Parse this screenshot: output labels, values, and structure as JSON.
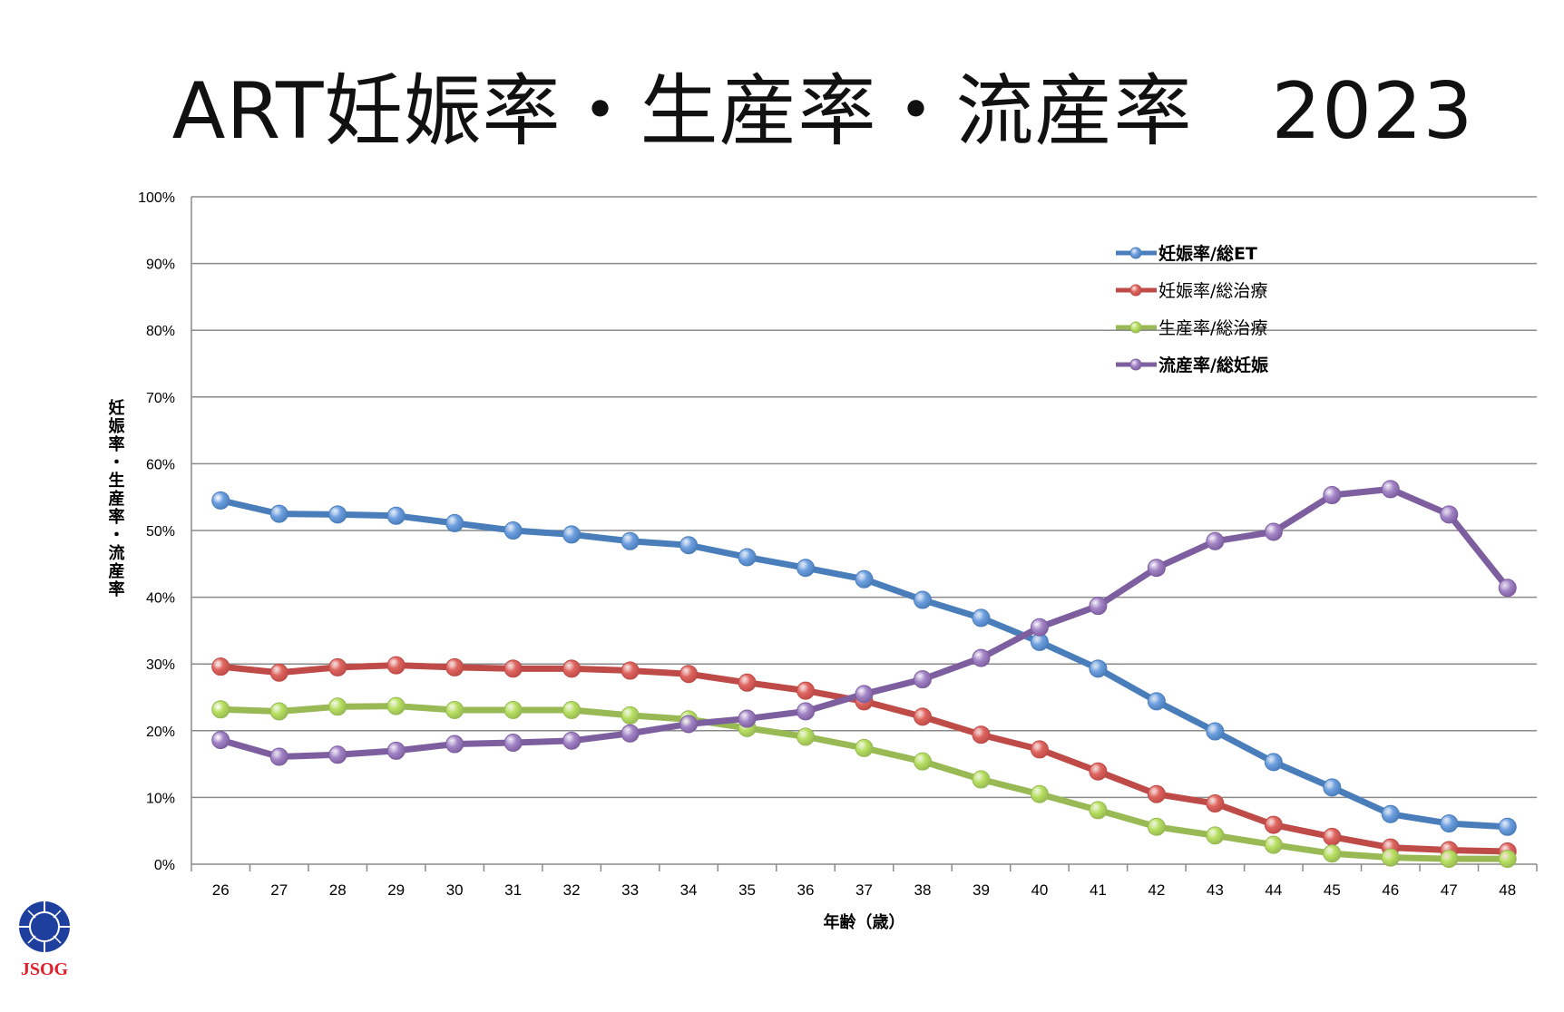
{
  "chart_data": {
    "type": "line",
    "title": "ART妊娠率・生産率・流産率　2023",
    "xlabel": "年齢（歳）",
    "ylabel": "妊娠率・生産率・流産率",
    "ylim": [
      0,
      100
    ],
    "yticks": [
      "0%",
      "10%",
      "20%",
      "30%",
      "40%",
      "50%",
      "60%",
      "70%",
      "80%",
      "90%",
      "100%"
    ],
    "grid": true,
    "legend_position": "top-right",
    "categories": [
      "26",
      "27",
      "28",
      "29",
      "30",
      "31",
      "32",
      "33",
      "34",
      "35",
      "36",
      "37",
      "38",
      "39",
      "40",
      "41",
      "42",
      "43",
      "44",
      "45",
      "46",
      "47",
      "48"
    ],
    "series": [
      {
        "name": "妊娠率/総ET",
        "color": "#4a7ebb",
        "marker": "#6fa0e0",
        "values": [
          54.5,
          52.5,
          52.4,
          52.2,
          51.1,
          50.0,
          49.4,
          48.4,
          47.8,
          46.0,
          44.4,
          42.7,
          39.6,
          36.9,
          33.3,
          29.3,
          24.4,
          19.9,
          15.3,
          11.5,
          7.5,
          6.1,
          5.6
        ]
      },
      {
        "name": "妊娠率/総治療",
        "color": "#be4b48",
        "marker": "#e06660",
        "values": [
          29.6,
          28.7,
          29.5,
          29.8,
          29.5,
          29.3,
          29.3,
          29.0,
          28.5,
          27.2,
          26.0,
          24.4,
          22.1,
          19.4,
          17.2,
          13.9,
          10.5,
          9.1,
          5.9,
          4.1,
          2.5,
          2.1,
          1.9
        ]
      },
      {
        "name": "生産率/総治療",
        "color": "#98b954",
        "marker": "#b8e060",
        "values": [
          23.2,
          22.9,
          23.6,
          23.7,
          23.1,
          23.1,
          23.1,
          22.3,
          21.7,
          20.4,
          19.1,
          17.4,
          15.4,
          12.7,
          10.5,
          8.1,
          5.6,
          4.3,
          2.9,
          1.6,
          1.0,
          0.8,
          0.8
        ]
      },
      {
        "name": "流産率/総妊娠",
        "color": "#7d5fa0",
        "marker": "#a486c8",
        "values": [
          18.6,
          16.1,
          16.4,
          17.0,
          18.0,
          18.2,
          18.5,
          19.6,
          21.0,
          21.8,
          22.9,
          25.5,
          27.7,
          30.9,
          35.5,
          38.7,
          44.4,
          48.4,
          49.8,
          55.3,
          56.2,
          52.4,
          41.4
        ]
      }
    ]
  },
  "logo": {
    "text": "JSOG",
    "color": "#1f3f9f"
  }
}
